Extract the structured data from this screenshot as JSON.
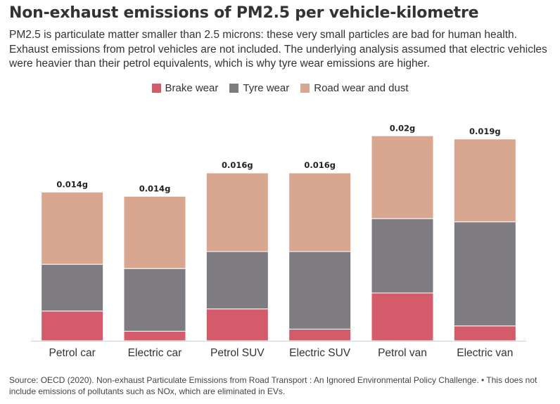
{
  "title": "Non-exhaust emissions of PM2.5 per vehicle-kilometre",
  "subtitle": "PM2.5 is particulate matter smaller than 2.5 microns: these very small particles are bad for human health. Exhaust emissions from petrol vehicles are not included. The underlying analysis assumed that electric vehicles were heavier than their petrol equivalents, which is why tyre wear emissions are higher.",
  "source": "Source: OECD (2020). Non-exhaust Particulate Emissions from Road Transport : An Ignored Environmental Policy Challenge. • This does not include emissions of pollutants such as NOx, which are eliminated in EVs.",
  "legend": [
    {
      "label": "Brake wear",
      "color": "#d45c6a"
    },
    {
      "label": "Tyre wear",
      "color": "#7e7c80"
    },
    {
      "label": "Road wear and dust",
      "color": "#d9a690"
    }
  ],
  "chart_data": {
    "type": "bar",
    "stacked": true,
    "categories": [
      "Petrol car",
      "Electric car",
      "Petrol SUV",
      "Electric SUV",
      "Petrol van",
      "Electric van"
    ],
    "series": [
      {
        "name": "Brake wear",
        "color": "#d45c6a",
        "values": [
          0.0028,
          0.0009,
          0.003,
          0.0011,
          0.0045,
          0.0014
        ]
      },
      {
        "name": "Tyre wear",
        "color": "#7e7c80",
        "values": [
          0.0044,
          0.0059,
          0.0054,
          0.0073,
          0.007,
          0.0098
        ]
      },
      {
        "name": "Road wear and dust",
        "color": "#d9a690",
        "values": [
          0.0068,
          0.0068,
          0.0074,
          0.0074,
          0.0078,
          0.0078
        ]
      }
    ],
    "totals": [
      0.014,
      0.0136,
      0.0158,
      0.0158,
      0.0193,
      0.019
    ],
    "total_labels": [
      "0.014g",
      "0.014g",
      "0.016g",
      "0.016g",
      "0.02g",
      "0.019g"
    ],
    "ylim": [
      0,
      0.0215
    ],
    "grid": false,
    "legend_position": "top-center"
  }
}
